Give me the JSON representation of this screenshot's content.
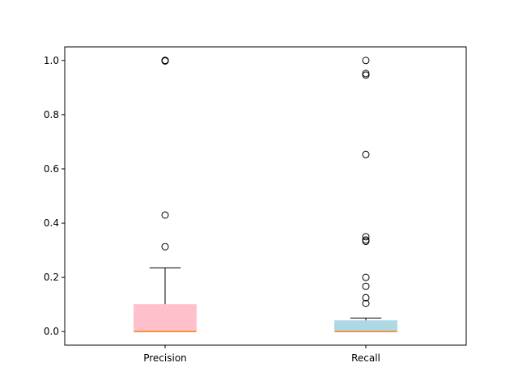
{
  "chart_data": {
    "type": "box",
    "title": "",
    "xlabel": "",
    "ylabel": "",
    "ylim": [
      -0.05,
      1.05
    ],
    "yticks": [
      0.0,
      0.2,
      0.4,
      0.6,
      0.8,
      1.0
    ],
    "ytick_labels": [
      "0.0",
      "0.2",
      "0.4",
      "0.6",
      "0.8",
      "1.0"
    ],
    "grid": false,
    "legend": "none",
    "categories": [
      "Precision",
      "Recall"
    ],
    "series": [
      {
        "category": "Precision",
        "color": "#ffc0cb",
        "median_color": "#ff7f0e",
        "q1": 0.0,
        "median": 0.0,
        "q3": 0.1,
        "whisker_low": 0.0,
        "whisker_high": 0.235,
        "outliers": [
          0.313,
          0.43,
          0.998,
          0.999,
          1.0,
          1.0,
          1.0
        ]
      },
      {
        "category": "Recall",
        "color": "#add8e6",
        "median_color": "#ff7f0e",
        "q1": 0.0,
        "median": 0.0,
        "q3": 0.04,
        "whisker_low": 0.0,
        "whisker_high": 0.05,
        "outliers": [
          0.104,
          0.125,
          0.167,
          0.2,
          0.333,
          0.338,
          0.35,
          0.653,
          0.946,
          0.952,
          1.0
        ]
      }
    ]
  }
}
